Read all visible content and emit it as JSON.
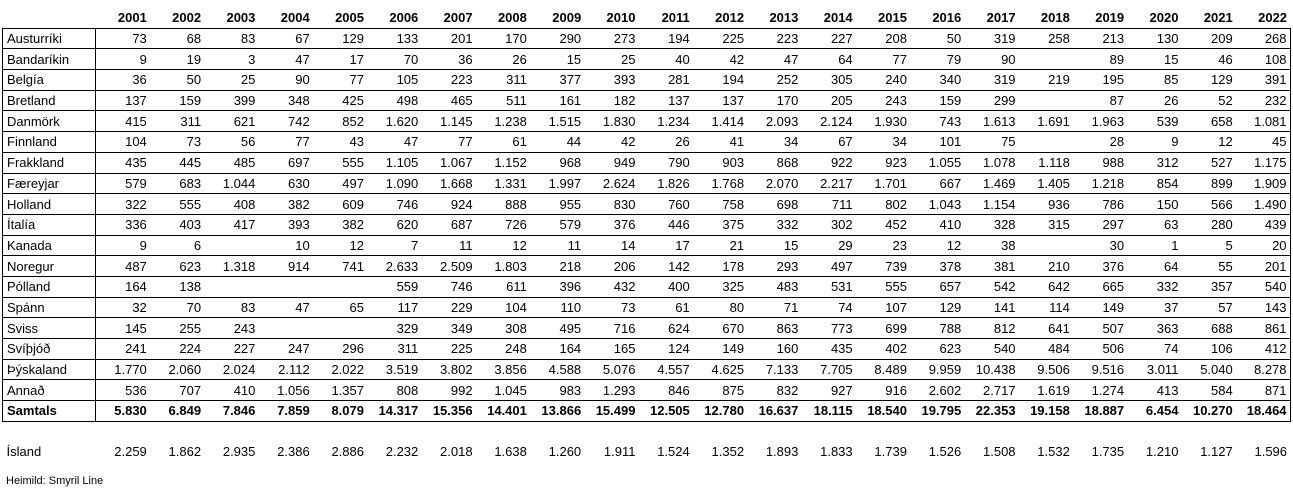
{
  "years": [
    "2001",
    "2002",
    "2003",
    "2004",
    "2005",
    "2006",
    "2007",
    "2008",
    "2009",
    "2010",
    "2011",
    "2012",
    "2013",
    "2014",
    "2015",
    "2016",
    "2017",
    "2018",
    "2019",
    "2020",
    "2021",
    "2022"
  ],
  "rows": [
    {
      "name": "Austurríki",
      "values": [
        "73",
        "68",
        "83",
        "67",
        "129",
        "133",
        "201",
        "170",
        "290",
        "273",
        "194",
        "225",
        "223",
        "227",
        "208",
        "50",
        "319",
        "258",
        "213",
        "130",
        "209",
        "268"
      ]
    },
    {
      "name": "Bandaríkin",
      "values": [
        "9",
        "19",
        "3",
        "47",
        "17",
        "70",
        "36",
        "26",
        "15",
        "25",
        "40",
        "42",
        "47",
        "64",
        "77",
        "79",
        "90",
        "",
        "89",
        "15",
        "46",
        "108"
      ]
    },
    {
      "name": "Belgía",
      "values": [
        "36",
        "50",
        "25",
        "90",
        "77",
        "105",
        "223",
        "311",
        "377",
        "393",
        "281",
        "194",
        "252",
        "305",
        "240",
        "340",
        "319",
        "219",
        "195",
        "85",
        "129",
        "391"
      ]
    },
    {
      "name": "Bretland",
      "values": [
        "137",
        "159",
        "399",
        "348",
        "425",
        "498",
        "465",
        "511",
        "161",
        "182",
        "137",
        "137",
        "170",
        "205",
        "243",
        "159",
        "299",
        "",
        "87",
        "26",
        "52",
        "232"
      ]
    },
    {
      "name": "Danmörk",
      "values": [
        "415",
        "311",
        "621",
        "742",
        "852",
        "1.620",
        "1.145",
        "1.238",
        "1.515",
        "1.830",
        "1.234",
        "1.414",
        "2.093",
        "2.124",
        "1.930",
        "743",
        "1.613",
        "1.691",
        "1.963",
        "539",
        "658",
        "1.081"
      ]
    },
    {
      "name": "Finnland",
      "values": [
        "104",
        "73",
        "56",
        "77",
        "43",
        "47",
        "77",
        "61",
        "44",
        "42",
        "26",
        "41",
        "34",
        "67",
        "34",
        "101",
        "75",
        "",
        "28",
        "9",
        "12",
        "45"
      ]
    },
    {
      "name": "Frakkland",
      "values": [
        "435",
        "445",
        "485",
        "697",
        "555",
        "1.105",
        "1.067",
        "1.152",
        "968",
        "949",
        "790",
        "903",
        "868",
        "922",
        "923",
        "1.055",
        "1.078",
        "1.118",
        "988",
        "312",
        "527",
        "1.175"
      ]
    },
    {
      "name": "Færeyjar",
      "values": [
        "579",
        "683",
        "1.044",
        "630",
        "497",
        "1.090",
        "1.668",
        "1.331",
        "1.997",
        "2.624",
        "1.826",
        "1.768",
        "2.070",
        "2.217",
        "1.701",
        "667",
        "1.469",
        "1.405",
        "1.218",
        "854",
        "899",
        "1.909"
      ]
    },
    {
      "name": "Holland",
      "values": [
        "322",
        "555",
        "408",
        "382",
        "609",
        "746",
        "924",
        "888",
        "955",
        "830",
        "760",
        "758",
        "698",
        "711",
        "802",
        "1.043",
        "1.154",
        "936",
        "786",
        "150",
        "566",
        "1.490"
      ]
    },
    {
      "name": "Ítalía",
      "values": [
        "336",
        "403",
        "417",
        "393",
        "382",
        "620",
        "687",
        "726",
        "579",
        "376",
        "446",
        "375",
        "332",
        "302",
        "452",
        "410",
        "328",
        "315",
        "297",
        "63",
        "280",
        "439"
      ]
    },
    {
      "name": "Kanada",
      "values": [
        "9",
        "6",
        "",
        "10",
        "12",
        "7",
        "11",
        "12",
        "11",
        "14",
        "17",
        "21",
        "15",
        "29",
        "23",
        "12",
        "38",
        "",
        "30",
        "1",
        "5",
        "20"
      ]
    },
    {
      "name": "Noregur",
      "values": [
        "487",
        "623",
        "1.318",
        "914",
        "741",
        "2.633",
        "2.509",
        "1.803",
        "218",
        "206",
        "142",
        "178",
        "293",
        "497",
        "739",
        "378",
        "381",
        "210",
        "376",
        "64",
        "55",
        "201"
      ]
    },
    {
      "name": "Pólland",
      "values": [
        "164",
        "138",
        "",
        "",
        "",
        "559",
        "746",
        "611",
        "396",
        "432",
        "400",
        "325",
        "483",
        "531",
        "555",
        "657",
        "542",
        "642",
        "665",
        "332",
        "357",
        "540"
      ]
    },
    {
      "name": "Spánn",
      "values": [
        "32",
        "70",
        "83",
        "47",
        "65",
        "117",
        "229",
        "104",
        "110",
        "73",
        "61",
        "80",
        "71",
        "74",
        "107",
        "129",
        "141",
        "114",
        "149",
        "37",
        "57",
        "143"
      ]
    },
    {
      "name": "Sviss",
      "values": [
        "145",
        "255",
        "243",
        "",
        "",
        "329",
        "349",
        "308",
        "495",
        "716",
        "624",
        "670",
        "863",
        "773",
        "699",
        "788",
        "812",
        "641",
        "507",
        "363",
        "688",
        "861"
      ]
    },
    {
      "name": "Svíþjóð",
      "values": [
        "241",
        "224",
        "227",
        "247",
        "296",
        "311",
        "225",
        "248",
        "164",
        "165",
        "124",
        "149",
        "160",
        "435",
        "402",
        "623",
        "540",
        "484",
        "506",
        "74",
        "106",
        "412"
      ]
    },
    {
      "name": "Þýskaland",
      "values": [
        "1.770",
        "2.060",
        "2.024",
        "2.112",
        "2.022",
        "3.519",
        "3.802",
        "3.856",
        "4.588",
        "5.076",
        "4.557",
        "4.625",
        "7.133",
        "7.705",
        "8.489",
        "9.959",
        "10.438",
        "9.506",
        "9.516",
        "3.011",
        "5.040",
        "8.278"
      ]
    },
    {
      "name": "Annað",
      "values": [
        "536",
        "707",
        "410",
        "1.056",
        "1.357",
        "808",
        "992",
        "1.045",
        "983",
        "1.293",
        "846",
        "875",
        "832",
        "927",
        "916",
        "2.602",
        "2.717",
        "1.619",
        "1.274",
        "413",
        "584",
        "871"
      ]
    }
  ],
  "total": {
    "name": "Samtals",
    "values": [
      "5.830",
      "6.849",
      "7.846",
      "7.859",
      "8.079",
      "14.317",
      "15.356",
      "14.401",
      "13.866",
      "15.499",
      "12.505",
      "12.780",
      "16.637",
      "18.115",
      "18.540",
      "19.795",
      "22.353",
      "19.158",
      "18.887",
      "6.454",
      "10.270",
      "18.464"
    ]
  },
  "iceland": {
    "name": "Ísland",
    "values": [
      "2.259",
      "1.862",
      "2.935",
      "2.386",
      "2.886",
      "2.232",
      "2.018",
      "1.638",
      "1.260",
      "1.911",
      "1.524",
      "1.352",
      "1.893",
      "1.833",
      "1.739",
      "1.526",
      "1.508",
      "1.532",
      "1.735",
      "1.210",
      "1.127",
      "1.596"
    ]
  },
  "source": "Heimild: Smyril Line"
}
